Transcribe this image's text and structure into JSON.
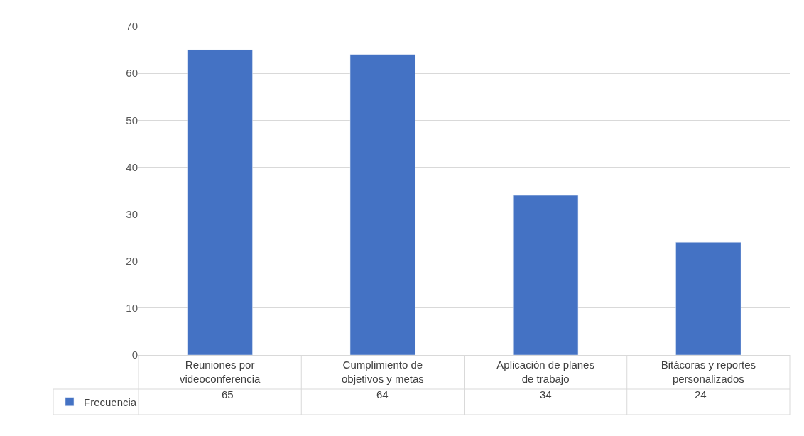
{
  "chart_data": {
    "type": "bar",
    "categories": [
      "Reuniones por videoconferencia",
      "Cumplimiento de objetivos y metas",
      "Aplicación de planes de trabajo",
      "Bitácoras y reportes personalizados"
    ],
    "series": [
      {
        "name": "Frecuencia",
        "color": "#4472c4",
        "values": [
          65,
          64,
          34,
          24
        ]
      }
    ],
    "ylim": [
      0,
      70
    ],
    "yticks": [
      0,
      10,
      20,
      30,
      40,
      50,
      60,
      70
    ],
    "grid": "y",
    "data_labels": true,
    "legend": "bottom left"
  }
}
